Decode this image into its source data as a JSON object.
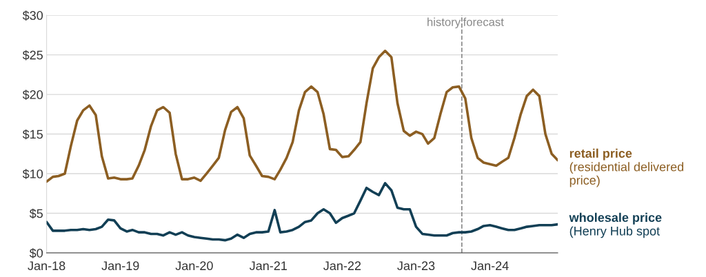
{
  "chart_data": {
    "type": "line",
    "x": [
      "2018-01",
      "2018-02",
      "2018-03",
      "2018-04",
      "2018-05",
      "2018-06",
      "2018-07",
      "2018-08",
      "2018-09",
      "2018-10",
      "2018-11",
      "2018-12",
      "2019-01",
      "2019-02",
      "2019-03",
      "2019-04",
      "2019-05",
      "2019-06",
      "2019-07",
      "2019-08",
      "2019-09",
      "2019-10",
      "2019-11",
      "2019-12",
      "2020-01",
      "2020-02",
      "2020-03",
      "2020-04",
      "2020-05",
      "2020-06",
      "2020-07",
      "2020-08",
      "2020-09",
      "2020-10",
      "2020-11",
      "2020-12",
      "2021-01",
      "2021-02",
      "2021-03",
      "2021-04",
      "2021-05",
      "2021-06",
      "2021-07",
      "2021-08",
      "2021-09",
      "2021-10",
      "2021-11",
      "2021-12",
      "2022-01",
      "2022-02",
      "2022-03",
      "2022-04",
      "2022-05",
      "2022-06",
      "2022-07",
      "2022-08",
      "2022-09",
      "2022-10",
      "2022-11",
      "2022-12",
      "2023-01",
      "2023-02",
      "2023-03",
      "2023-04",
      "2023-05",
      "2023-06",
      "2023-07",
      "2023-08",
      "2023-09",
      "2023-10",
      "2023-11",
      "2023-12",
      "2024-01",
      "2024-02",
      "2024-03",
      "2024-04",
      "2024-05",
      "2024-06",
      "2024-07",
      "2024-08",
      "2024-09",
      "2024-10",
      "2024-11",
      "2024-12"
    ],
    "series": [
      {
        "name": "retail price",
        "color": "#8c5e22",
        "values": [
          9.0,
          9.6,
          9.7,
          10.0,
          13.5,
          16.7,
          18.0,
          18.6,
          17.4,
          12.2,
          9.4,
          9.5,
          9.3,
          9.3,
          9.4,
          11.0,
          13.0,
          16.0,
          18.0,
          18.4,
          17.7,
          12.5,
          9.3,
          9.3,
          9.5,
          9.1,
          10.0,
          11.0,
          12.0,
          15.5,
          17.8,
          18.4,
          17.0,
          12.3,
          11.0,
          9.7,
          9.6,
          9.3,
          10.5,
          12.0,
          14.0,
          18.0,
          20.3,
          21.0,
          20.3,
          17.5,
          13.1,
          13.0,
          12.1,
          12.2,
          13.0,
          14.0,
          18.9,
          23.3,
          24.7,
          25.5,
          24.7,
          18.9,
          15.4,
          14.8,
          15.3,
          15.0,
          13.8,
          14.5,
          17.5,
          20.3,
          20.9,
          21.0,
          19.5,
          14.5,
          12.0,
          11.4,
          11.2,
          11.0,
          11.5,
          12.0,
          14.5,
          17.5,
          19.8,
          20.6,
          19.8,
          15.0,
          12.5,
          11.7
        ]
      },
      {
        "name": "wholesale price",
        "color": "#123f55",
        "values": [
          3.9,
          2.8,
          2.8,
          2.8,
          2.9,
          2.9,
          3.0,
          2.9,
          3.0,
          3.3,
          4.2,
          4.1,
          3.1,
          2.7,
          2.9,
          2.6,
          2.6,
          2.4,
          2.4,
          2.2,
          2.6,
          2.3,
          2.6,
          2.2,
          2.0,
          1.9,
          1.8,
          1.7,
          1.7,
          1.6,
          1.8,
          2.3,
          1.9,
          2.4,
          2.6,
          2.6,
          2.7,
          5.4,
          2.6,
          2.7,
          2.9,
          3.3,
          3.9,
          4.1,
          5.0,
          5.5,
          5.0,
          3.8,
          4.4,
          4.7,
          5.0,
          6.6,
          8.2,
          7.7,
          7.3,
          8.8,
          7.9,
          5.7,
          5.5,
          5.5,
          3.3,
          2.4,
          2.3,
          2.2,
          2.2,
          2.2,
          2.5,
          2.6,
          2.6,
          2.7,
          3.0,
          3.4,
          3.5,
          3.3,
          3.1,
          2.9,
          2.9,
          3.1,
          3.3,
          3.4,
          3.5,
          3.5,
          3.5,
          3.6
        ]
      }
    ],
    "xlim": [
      "2018-01",
      "2024-12"
    ],
    "xticks": [
      {
        "value": "2018-01",
        "label": "Jan-18"
      },
      {
        "value": "2019-01",
        "label": "Jan-19"
      },
      {
        "value": "2020-01",
        "label": "Jan-20"
      },
      {
        "value": "2021-01",
        "label": "Jan-21"
      },
      {
        "value": "2022-01",
        "label": "Jan-22"
      },
      {
        "value": "2023-01",
        "label": "Jan-23"
      },
      {
        "value": "2024-01",
        "label": "Jan-24"
      }
    ],
    "ylim": [
      0,
      30
    ],
    "yticks": [
      {
        "value": 0,
        "label": "$0"
      },
      {
        "value": 5,
        "label": "$5"
      },
      {
        "value": 10,
        "label": "$10"
      },
      {
        "value": 15,
        "label": "$15"
      },
      {
        "value": 20,
        "label": "$20"
      },
      {
        "value": 25,
        "label": "$25"
      },
      {
        "value": 30,
        "label": "$30"
      }
    ],
    "grid": "y",
    "legend": false,
    "marker": "none",
    "line_style": "solid",
    "ref_lines": [
      {
        "axis": "x",
        "value": "2023-08-15",
        "label": "history",
        "color": "#888888",
        "line_style": "dashed"
      }
    ],
    "annotations": [
      {
        "text": "forecast",
        "x": "2023-08-15",
        "y": 30
      },
      "(residential delivered price)",
      "(Henry Hub spot"
    ]
  }
}
